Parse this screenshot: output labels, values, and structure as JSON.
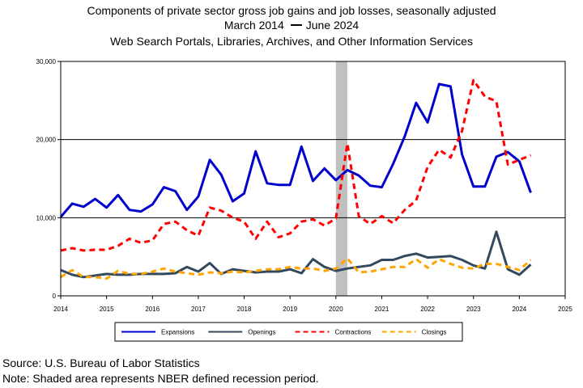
{
  "header": {
    "line1": "Components of private sector gross job gains and job losses, seasonally adjusted",
    "period_start": "March 2014",
    "period_end": "June 2024",
    "line3": "Web Search Portals, Libraries, Archives, and Other Information Services"
  },
  "footer": {
    "source": "Source: U.S. Bureau of Labor Statistics",
    "note": "Note: Shaded area represents NBER defined recession period."
  },
  "chart_data": {
    "type": "line",
    "title": "Components of private sector gross job gains and job losses, seasonally adjusted",
    "xlabel": "",
    "ylabel": "",
    "xlim": [
      2014,
      2025
    ],
    "ylim": [
      0,
      30000
    ],
    "x_ticks": [
      2014,
      2015,
      2016,
      2017,
      2018,
      2019,
      2020,
      2021,
      2022,
      2023,
      2024,
      2025
    ],
    "y_ticks": [
      0,
      10000,
      20000,
      30000
    ],
    "y_tick_labels": [
      "0",
      "10,000",
      "20,000",
      "30,000"
    ],
    "gridlines": [
      10000,
      20000
    ],
    "recession": {
      "start": 2020.0,
      "end": 2020.25,
      "color": "#c0c0c0"
    },
    "legend_position": "bottom",
    "x": [
      2014.0,
      2014.25,
      2014.5,
      2014.75,
      2015.0,
      2015.25,
      2015.5,
      2015.75,
      2016.0,
      2016.25,
      2016.5,
      2016.75,
      2017.0,
      2017.25,
      2017.5,
      2017.75,
      2018.0,
      2018.25,
      2018.5,
      2018.75,
      2019.0,
      2019.25,
      2019.5,
      2019.75,
      2020.0,
      2020.25,
      2020.5,
      2020.75,
      2021.0,
      2021.25,
      2021.5,
      2021.75,
      2022.0,
      2022.25,
      2022.5,
      2022.75,
      2023.0,
      2023.25,
      2023.5,
      2023.75,
      2024.0,
      2024.25
    ],
    "series": [
      {
        "name": "Expansions",
        "color": "#0000cc",
        "dash": "solid",
        "width": 3,
        "values": [
          10100,
          11800,
          11400,
          12400,
          11300,
          12900,
          11000,
          10800,
          11700,
          13900,
          13400,
          11000,
          12700,
          17400,
          15500,
          12100,
          13100,
          18500,
          14400,
          14200,
          14200,
          19100,
          14700,
          16300,
          14800,
          16100,
          15400,
          14100,
          13900,
          16900,
          20400,
          24700,
          22200,
          27100,
          26800,
          18100,
          14000,
          14000,
          17800,
          18400,
          17200,
          13200
        ]
      },
      {
        "name": "Openings",
        "color": "#34495e",
        "dash": "solid",
        "width": 3,
        "values": [
          3300,
          2700,
          2400,
          2600,
          2800,
          2700,
          2700,
          2800,
          2800,
          2800,
          2900,
          3700,
          3100,
          4200,
          2800,
          3400,
          3200,
          3000,
          3100,
          3100,
          3400,
          2900,
          4700,
          3700,
          3200,
          3500,
          3700,
          3900,
          4600,
          4600,
          5100,
          5400,
          4900,
          5000,
          5100,
          4600,
          3900,
          3500,
          8200,
          3400,
          2700,
          4000
        ]
      },
      {
        "name": "Contractions",
        "color": "#ff0000",
        "dash": "dashed",
        "width": 3,
        "values": [
          5800,
          6100,
          5800,
          5900,
          5900,
          6400,
          7300,
          6800,
          7100,
          9200,
          9500,
          8400,
          7700,
          11300,
          10900,
          10000,
          9500,
          7300,
          9500,
          7500,
          8000,
          9500,
          9800,
          9000,
          9900,
          19500,
          10200,
          9200,
          10200,
          9300,
          11000,
          12200,
          16500,
          18700,
          17700,
          21100,
          27600,
          25500,
          24900,
          16800,
          17400,
          18000
        ]
      },
      {
        "name": "Closings",
        "color": "#ffa500",
        "dash": "dashed",
        "width": 3,
        "values": [
          2400,
          3300,
          2400,
          2400,
          2200,
          3200,
          2800,
          2800,
          3100,
          3500,
          3100,
          2900,
          2700,
          3000,
          2900,
          3100,
          3000,
          3200,
          3400,
          3400,
          3700,
          3500,
          3500,
          3200,
          3500,
          4800,
          3000,
          3100,
          3400,
          3700,
          3700,
          4700,
          3600,
          4700,
          4100,
          3600,
          3500,
          4100,
          4100,
          3700,
          3300,
          4600
        ]
      }
    ]
  }
}
